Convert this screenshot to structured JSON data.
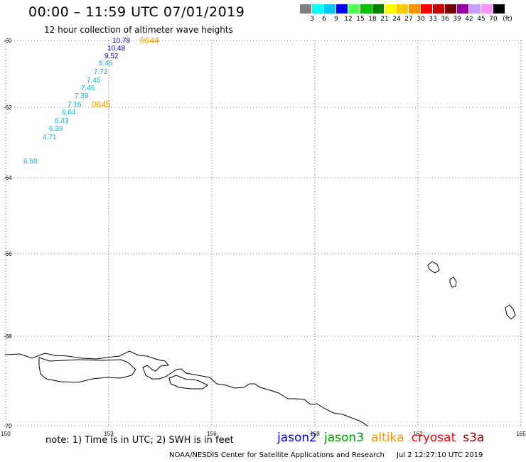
{
  "header": {
    "title": "00:00 – 11:59 UTC 07/01/2019",
    "subtitle": "12 hour collection of altimeter wave heights"
  },
  "color_scale": {
    "unit": "(ft)",
    "labels": [
      "3",
      "6",
      "9",
      "12",
      "15",
      "18",
      "21",
      "24",
      "27",
      "30",
      "33",
      "36",
      "39",
      "42",
      "45",
      "70"
    ],
    "colors": [
      "#808080",
      "#00ffff",
      "#00c8ff",
      "#0000ff",
      "#50ff50",
      "#00c000",
      "#008000",
      "#ffff00",
      "#ffc800",
      "#ff9600",
      "#ff0000",
      "#c80000",
      "#780000",
      "#9600a0",
      "#c8a0ff",
      "#ff96ff",
      "#000000"
    ]
  },
  "map": {
    "lat_labels": [
      "-60",
      "-62",
      "-64",
      "-66",
      "-68",
      "-70"
    ],
    "lon_labels": [
      "150",
      "153",
      "156",
      "159",
      "162",
      "165"
    ],
    "measurements": [
      {
        "value": "10.78",
        "color": "#0000c8"
      },
      {
        "value": "10.48",
        "color": "#0000c8"
      },
      {
        "value": "9.52",
        "color": "#0000c8"
      },
      {
        "value": "8.45",
        "color": "#00b4e6"
      },
      {
        "value": "7.72",
        "color": "#00b4e6"
      },
      {
        "value": "7.45",
        "color": "#00b4e6"
      },
      {
        "value": "7.46",
        "color": "#00b4e6"
      },
      {
        "value": "7.39",
        "color": "#00b4e6"
      },
      {
        "value": "7.16",
        "color": "#00b4e6"
      },
      {
        "value": "6.64",
        "color": "#00b4e6"
      },
      {
        "value": "6.43",
        "color": "#00b4e6"
      },
      {
        "value": "6.39",
        "color": "#00b4e6"
      },
      {
        "value": "4.71",
        "color": "#00b4e6"
      },
      {
        "value": "6.58",
        "color": "#00b4e6"
      }
    ],
    "time_tags": [
      {
        "text": "0644",
        "color": "#ff9600"
      },
      {
        "text": "0645",
        "color": "#ff9600"
      }
    ]
  },
  "footer": {
    "note": "note: 1) Time is in UTC; 2) SWH is in feet",
    "satellites": [
      {
        "name": "jason2",
        "color": "#0000ff"
      },
      {
        "name": "jason3",
        "color": "#00a000"
      },
      {
        "name": "altika",
        "color": "#ff9600"
      },
      {
        "name": "cryosat",
        "color": "#ff0000"
      },
      {
        "name": "s3a",
        "color": "#a00000"
      }
    ],
    "credit_org": "NOAA/NESDIS Center for Satellite Applications and Research",
    "credit_time": "Jul  2 12:27:10 UTC 2019"
  }
}
